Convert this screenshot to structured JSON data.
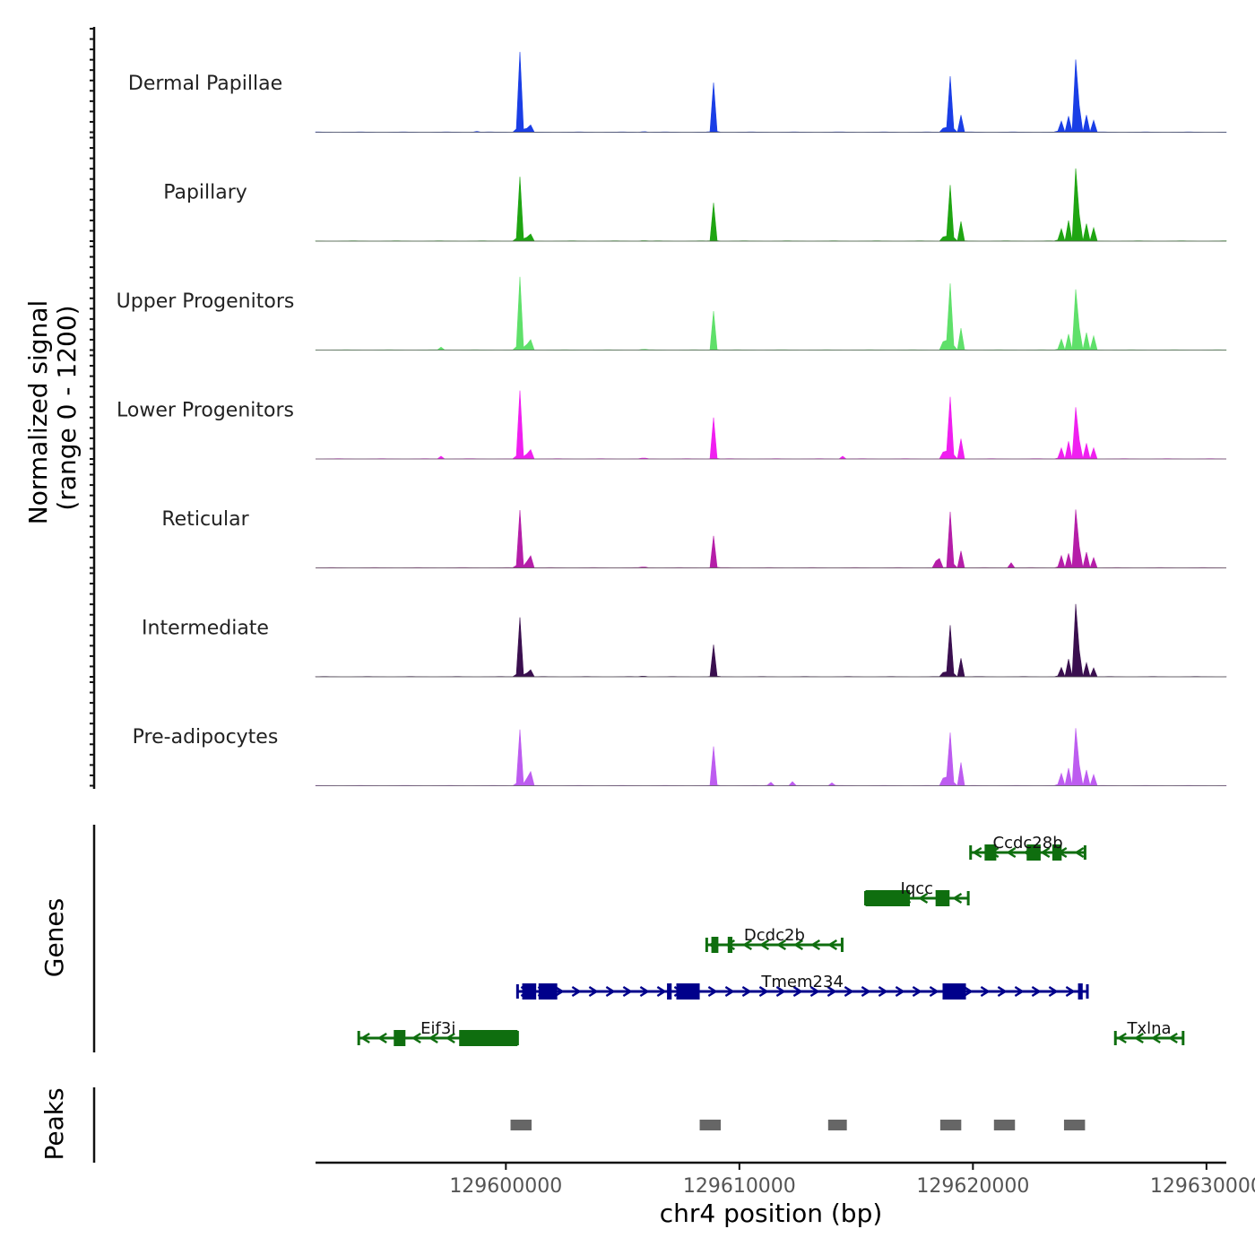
{
  "chart_data": {
    "type": "area",
    "title": "",
    "ylabel_line1": "Normalized signal",
    "ylabel_line2": "(range 0 - 1200)",
    "ylim": [
      0,
      1200
    ],
    "xlabel": "chr4 position (bp)",
    "xlim": [
      129591850,
      129630850
    ],
    "x_ticks": [
      129600000,
      129610000,
      129620000,
      129630000
    ],
    "x_tick_labels": [
      "129600000",
      "129610000",
      "129620000",
      "129630000"
    ],
    "tracks": [
      {
        "name": "Dermal Papillae",
        "color": "#1a3ee6"
      },
      {
        "name": "Papillary",
        "color": "#1fa512"
      },
      {
        "name": "Upper Progenitors",
        "color": "#5fe06a"
      },
      {
        "name": "Lower Progenitors",
        "color": "#f01ff0"
      },
      {
        "name": "Reticular",
        "color": "#b51ea8"
      },
      {
        "name": "Intermediate",
        "color": "#3a0f4f"
      },
      {
        "name": "Pre-adipocytes",
        "color": "#bd5cf0"
      }
    ],
    "peaks_by_track": [
      [
        [
          129600600,
          1000,
          60
        ],
        [
          129601000,
          150,
          60
        ],
        [
          129608900,
          620,
          50
        ],
        [
          129618800,
          120,
          60
        ],
        [
          129619050,
          760,
          55
        ],
        [
          129619500,
          220,
          45
        ],
        [
          129623750,
          180,
          50
        ],
        [
          129624100,
          200,
          45
        ],
        [
          129624450,
          1200,
          65
        ],
        [
          129624850,
          220,
          50
        ],
        [
          129625150,
          160,
          45
        ],
        [
          129605900,
          40,
          40
        ],
        [
          129598700,
          30,
          40
        ]
      ],
      [
        [
          129600600,
          800,
          60
        ],
        [
          129601000,
          150,
          60
        ],
        [
          129608900,
          480,
          50
        ],
        [
          129618800,
          100,
          70
        ],
        [
          129619050,
          760,
          55
        ],
        [
          129619500,
          250,
          45
        ],
        [
          129623750,
          200,
          50
        ],
        [
          129624100,
          260,
          45
        ],
        [
          129624450,
          1200,
          65
        ],
        [
          129624850,
          220,
          50
        ],
        [
          129625150,
          180,
          45
        ],
        [
          129605900,
          30,
          40
        ]
      ],
      [
        [
          129600600,
          910,
          60
        ],
        [
          129601000,
          220,
          60
        ],
        [
          129608900,
          490,
          50
        ],
        [
          129618800,
          200,
          70
        ],
        [
          129619050,
          900,
          55
        ],
        [
          129619500,
          280,
          45
        ],
        [
          129623750,
          180,
          50
        ],
        [
          129624100,
          200,
          45
        ],
        [
          129624450,
          1000,
          65
        ],
        [
          129624850,
          220,
          50
        ],
        [
          129625150,
          190,
          45
        ],
        [
          129605900,
          40,
          40
        ],
        [
          129597200,
          40,
          40
        ]
      ],
      [
        [
          129600600,
          850,
          60
        ],
        [
          129601000,
          200,
          60
        ],
        [
          129608900,
          520,
          50
        ],
        [
          129618800,
          160,
          70
        ],
        [
          129619050,
          840,
          55
        ],
        [
          129619500,
          260,
          45
        ],
        [
          129623750,
          180,
          50
        ],
        [
          129624100,
          220,
          45
        ],
        [
          129624450,
          850,
          65
        ],
        [
          129624850,
          200,
          50
        ],
        [
          129625150,
          150,
          45
        ],
        [
          129605900,
          50,
          40
        ],
        [
          129614400,
          40,
          40
        ],
        [
          129597200,
          40,
          40
        ]
      ],
      [
        [
          129600600,
          720,
          60
        ],
        [
          129601000,
          260,
          60
        ],
        [
          129608900,
          400,
          50
        ],
        [
          129618500,
          180,
          70
        ],
        [
          129619050,
          760,
          55
        ],
        [
          129619500,
          220,
          45
        ],
        [
          129623750,
          200,
          50
        ],
        [
          129624100,
          180,
          45
        ],
        [
          129624450,
          960,
          65
        ],
        [
          129624850,
          200,
          50
        ],
        [
          129625150,
          140,
          45
        ],
        [
          129605900,
          50,
          40
        ],
        [
          129621600,
          90,
          45
        ]
      ],
      [
        [
          129600600,
          740,
          60
        ],
        [
          129601000,
          150,
          60
        ],
        [
          129608900,
          400,
          50
        ],
        [
          129618800,
          100,
          70
        ],
        [
          129619050,
          700,
          55
        ],
        [
          129619500,
          240,
          45
        ],
        [
          129623750,
          150,
          50
        ],
        [
          129624100,
          220,
          45
        ],
        [
          129624450,
          1200,
          65
        ],
        [
          129624850,
          180,
          50
        ],
        [
          129625150,
          120,
          45
        ],
        [
          129605900,
          40,
          40
        ]
      ],
      [
        [
          129600600,
          700,
          60
        ],
        [
          129601000,
          300,
          60
        ],
        [
          129608900,
          490,
          50
        ],
        [
          129618800,
          180,
          70
        ],
        [
          129619050,
          720,
          55
        ],
        [
          129619500,
          300,
          45
        ],
        [
          129623750,
          200,
          50
        ],
        [
          129624100,
          220,
          45
        ],
        [
          129624450,
          950,
          65
        ],
        [
          129624850,
          200,
          50
        ],
        [
          129625150,
          150,
          45
        ],
        [
          129611300,
          80,
          45
        ],
        [
          129612300,
          60,
          45
        ],
        [
          129614000,
          50,
          45
        ]
      ]
    ],
    "genes_label": "Genes",
    "genes": [
      {
        "name": "Ccdc28b",
        "start": 129619900,
        "end": 129624800,
        "strand": "-",
        "row": 4,
        "color": "#0f6e0f",
        "exons": [
          [
            129620500,
            129621000
          ],
          [
            129622300,
            129622900
          ],
          [
            129623400,
            129623800
          ]
        ]
      },
      {
        "name": "Iqcc",
        "start": 129615400,
        "end": 129619800,
        "strand": "-",
        "row": 3,
        "color": "#0f6e0f",
        "exons": [
          [
            129615400,
            129617300
          ],
          [
            129618400,
            129619000
          ]
        ]
      },
      {
        "name": "Dcdc2b",
        "start": 129608600,
        "end": 129614400,
        "strand": "-",
        "row": 2,
        "color": "#0f6e0f",
        "exons": [
          [
            129608800,
            129609100
          ],
          [
            129609500,
            129609700
          ]
        ]
      },
      {
        "name": "Tmem234",
        "start": 129600500,
        "end": 129624900,
        "strand": "+",
        "row": 1,
        "color": "#00008b",
        "exons": [
          [
            129600700,
            129601300
          ],
          [
            129601400,
            129602200
          ],
          [
            129606900,
            129607100
          ],
          [
            129607300,
            129608300
          ],
          [
            129618700,
            129619700
          ],
          [
            129624500,
            129624700
          ]
        ]
      },
      {
        "name": "Eif3i",
        "start": 129593700,
        "end": 129600500,
        "strand": "-",
        "row": 0,
        "color": "#0f6e0f",
        "exons": [
          [
            129595200,
            129595700
          ],
          [
            129598000,
            129600500
          ]
        ]
      },
      {
        "name": "Txlna",
        "start": 129626100,
        "end": 129629000,
        "strand": "-",
        "row": 0,
        "color": "#0f6e0f",
        "exons": []
      }
    ],
    "peaks_label": "Peaks",
    "peaks": [
      [
        129600200,
        129601100
      ],
      [
        129608300,
        129609200
      ],
      [
        129613800,
        129614600
      ],
      [
        129618600,
        129619500
      ],
      [
        129620900,
        129621800
      ],
      [
        129623900,
        129624800
      ]
    ]
  }
}
